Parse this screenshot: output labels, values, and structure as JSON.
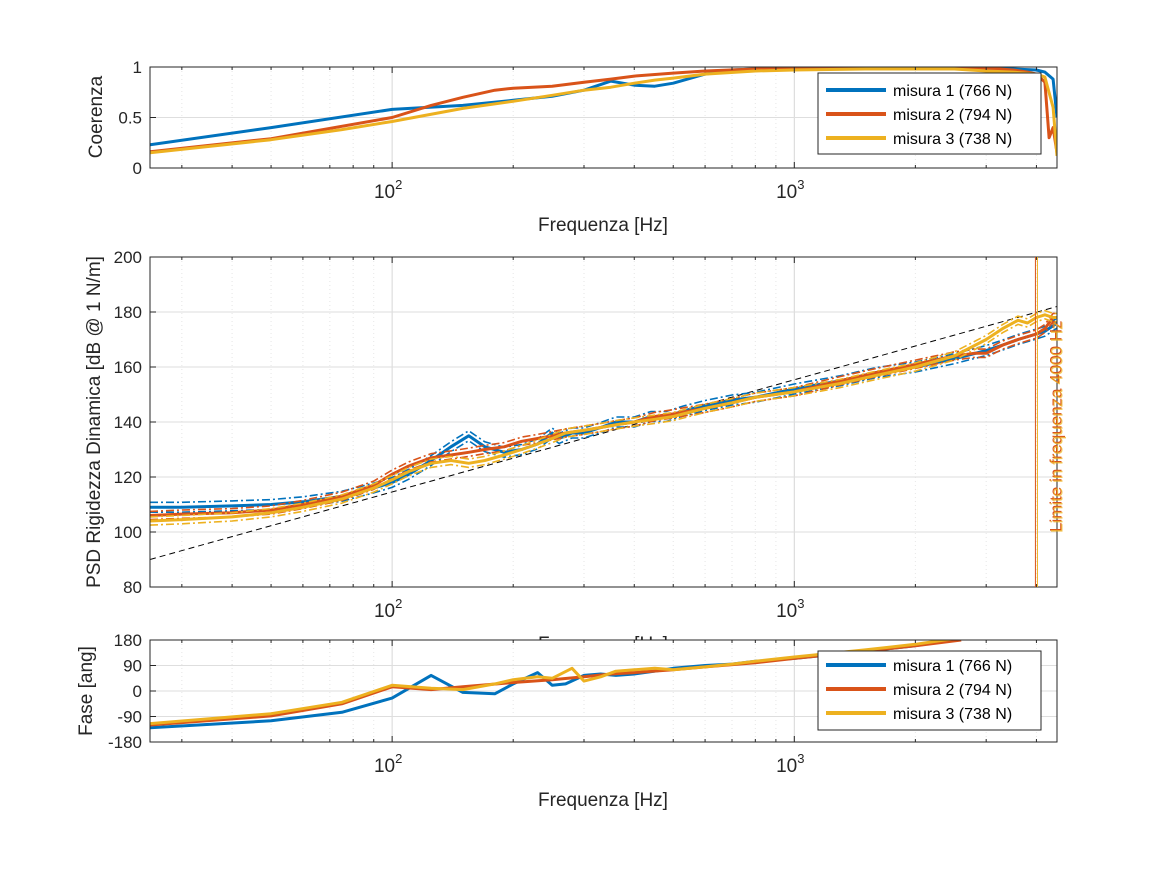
{
  "colors": {
    "s1": "#0072BD",
    "s2": "#D95319",
    "s3": "#EDB120",
    "reference": "#000000",
    "grid": "#dedede",
    "axis": "#262626"
  },
  "xaxis": {
    "label": "Frequenza [Hz]",
    "ticks": [
      {
        "value": 100,
        "base": "10",
        "exp": "2"
      },
      {
        "value": 1000,
        "base": "10",
        "exp": "3"
      }
    ]
  },
  "legend_entries": [
    "misura 1 (766 N)",
    "misura 2 (794 N)",
    "misura 3 (738 N)"
  ],
  "chart_data": [
    {
      "type": "line",
      "name": "coherence",
      "title": "",
      "xlabel": "Frequenza [Hz]",
      "ylabel": "Coerenza",
      "xscale": "log",
      "xlim": [
        25,
        4500
      ],
      "ylim": [
        0,
        1
      ],
      "yticks": [
        "0",
        "0.5",
        "1"
      ],
      "grid": true,
      "legend": "top-right",
      "series": [
        {
          "name": "misura 1 (766 N)",
          "x": [
            25,
            50,
            100,
            150,
            200,
            250,
            300,
            350,
            400,
            450,
            500,
            600,
            700,
            800,
            1000,
            1500,
            2000,
            2500,
            3000,
            3500,
            4000,
            4200,
            4400,
            4500
          ],
          "values": [
            0.23,
            0.4,
            0.58,
            0.62,
            0.67,
            0.71,
            0.77,
            0.86,
            0.82,
            0.81,
            0.84,
            0.93,
            0.97,
            0.98,
            0.98,
            0.99,
            0.99,
            0.99,
            0.98,
            0.98,
            0.97,
            0.95,
            0.88,
            0.5
          ]
        },
        {
          "name": "misura 2 (794 N)",
          "x": [
            25,
            50,
            100,
            125,
            150,
            180,
            200,
            250,
            300,
            350,
            400,
            500,
            600,
            800,
            1000,
            1500,
            2000,
            2500,
            3000,
            3500,
            3800,
            4000,
            4200,
            4300,
            4400,
            4500
          ],
          "values": [
            0.16,
            0.29,
            0.5,
            0.62,
            0.7,
            0.77,
            0.79,
            0.81,
            0.85,
            0.88,
            0.91,
            0.94,
            0.96,
            0.98,
            0.98,
            0.99,
            0.99,
            0.99,
            0.99,
            0.97,
            0.95,
            0.93,
            0.85,
            0.3,
            0.4,
            0.15
          ]
        },
        {
          "name": "misura 3 (738 N)",
          "x": [
            25,
            50,
            75,
            100,
            150,
            200,
            250,
            300,
            350,
            400,
            450,
            500,
            600,
            800,
            1000,
            1500,
            2000,
            2500,
            3000,
            3500,
            4000,
            4200,
            4400,
            4500
          ],
          "values": [
            0.15,
            0.28,
            0.38,
            0.46,
            0.59,
            0.66,
            0.72,
            0.77,
            0.8,
            0.84,
            0.87,
            0.89,
            0.93,
            0.96,
            0.97,
            0.98,
            0.98,
            0.98,
            0.96,
            0.95,
            0.93,
            0.9,
            0.6,
            0.12
          ]
        }
      ]
    },
    {
      "type": "line",
      "name": "stiffness",
      "title": "",
      "xlabel": "Frequenza [Hz]",
      "ylabel": "PSD Rigidezza Dinamica [dB @ 1 N/m]",
      "xscale": "log",
      "xlim": [
        25,
        4500
      ],
      "ylim": [
        80,
        200
      ],
      "yticks": [
        "80",
        "100",
        "120",
        "140",
        "160",
        "180",
        "200"
      ],
      "grid": true,
      "annotation": {
        "text": "Limite in frequenza 4000 Hz",
        "x": 4000
      },
      "reference_line": {
        "style": "dashed",
        "x": [
          25,
          4500
        ],
        "values": [
          90,
          182
        ]
      },
      "series": [
        {
          "name": "misura 1 (766 N)",
          "x": [
            25,
            30,
            40,
            50,
            60,
            75,
            90,
            100,
            110,
            125,
            140,
            155,
            170,
            190,
            210,
            230,
            250,
            260,
            280,
            300,
            330,
            360,
            400,
            440,
            480,
            530,
            600,
            700,
            800,
            1000,
            1300,
            1600,
            2000,
            2500,
            3000,
            3300,
            3600,
            4000,
            4200,
            4400,
            4500
          ],
          "values": [
            109,
            109,
            109.5,
            110,
            111,
            113,
            116,
            118,
            121,
            126,
            131,
            135,
            131,
            129,
            130,
            132,
            136,
            134,
            136,
            136,
            138,
            140,
            140,
            142,
            142,
            144,
            146,
            148,
            149,
            152,
            155,
            158,
            160,
            163,
            166,
            168,
            170,
            172,
            173,
            175,
            176
          ],
          "band": 1.8
        },
        {
          "name": "misura 2 (794 N)",
          "x": [
            25,
            30,
            40,
            50,
            60,
            75,
            90,
            100,
            110,
            125,
            140,
            155,
            170,
            190,
            210,
            230,
            250,
            270,
            300,
            330,
            360,
            400,
            450,
            500,
            600,
            700,
            800,
            1000,
            1300,
            1600,
            2000,
            2500,
            2800,
            3000,
            3300,
            3600,
            4000,
            4200,
            4400,
            4500
          ],
          "values": [
            106,
            106.5,
            107,
            108,
            110,
            113,
            117,
            121,
            124,
            127,
            128,
            129,
            130,
            131,
            133,
            134,
            135,
            136,
            137,
            138,
            139,
            140,
            142,
            143,
            145,
            147,
            149,
            151,
            155,
            158,
            161,
            164,
            165,
            165,
            168,
            170,
            172,
            174,
            178,
            178
          ],
          "band": 1.5
        },
        {
          "name": "misura 3 (738 N)",
          "x": [
            25,
            30,
            40,
            50,
            60,
            75,
            90,
            100,
            110,
            125,
            140,
            155,
            170,
            190,
            210,
            230,
            250,
            270,
            300,
            330,
            360,
            400,
            450,
            500,
            600,
            700,
            800,
            1000,
            1300,
            1600,
            2000,
            2500,
            3000,
            3300,
            3600,
            3800,
            4000,
            4200,
            4400,
            4500
          ],
          "values": [
            104,
            104.5,
            105.5,
            107,
            109,
            112,
            116,
            119,
            122,
            125,
            126,
            125,
            126,
            128,
            130,
            132,
            134,
            136,
            137,
            138,
            139,
            140,
            141,
            142,
            145,
            147,
            149,
            151,
            154,
            157,
            160,
            164,
            170,
            174,
            177,
            176,
            178,
            179,
            178,
            178
          ],
          "band": 1.5
        }
      ]
    },
    {
      "type": "line",
      "name": "phase",
      "title": "",
      "xlabel": "Frequenza [Hz]",
      "ylabel": "Fase [ang]",
      "xscale": "log",
      "xlim": [
        25,
        4500
      ],
      "ylim": [
        -180,
        180
      ],
      "yticks": [
        "-180",
        "-90",
        "0",
        "90",
        "180"
      ],
      "grid": true,
      "legend": "top-right",
      "series": [
        {
          "name": "misura 1 (766 N)",
          "x": [
            25,
            50,
            75,
            100,
            125,
            150,
            180,
            200,
            230,
            250,
            270,
            300,
            330,
            360,
            400,
            450,
            500,
            600,
            700,
            800,
            1000,
            1500,
            2000,
            2600
          ],
          "values": [
            -130,
            -105,
            -75,
            -25,
            55,
            -5,
            -10,
            25,
            65,
            20,
            25,
            55,
            60,
            55,
            60,
            70,
            80,
            90,
            95,
            105,
            115,
            140,
            160,
            185
          ]
        },
        {
          "name": "misura 2 (794 N)",
          "x": [
            25,
            50,
            75,
            100,
            125,
            150,
            200,
            250,
            300,
            350,
            400,
            500,
            600,
            800,
            1000,
            1500,
            2000,
            2600
          ],
          "values": [
            -120,
            -88,
            -45,
            15,
            5,
            15,
            30,
            40,
            50,
            60,
            65,
            75,
            85,
            100,
            115,
            140,
            160,
            180
          ]
        },
        {
          "name": "misura 3 (738 N)",
          "x": [
            25,
            50,
            75,
            100,
            125,
            150,
            180,
            200,
            230,
            250,
            280,
            300,
            330,
            360,
            400,
            450,
            500,
            600,
            700,
            800,
            1000,
            1500,
            2000,
            2500
          ],
          "values": [
            -115,
            -80,
            -40,
            20,
            10,
            5,
            25,
            40,
            50,
            45,
            80,
            35,
            50,
            70,
            75,
            80,
            75,
            85,
            95,
            105,
            120,
            145,
            165,
            185
          ]
        }
      ]
    }
  ]
}
